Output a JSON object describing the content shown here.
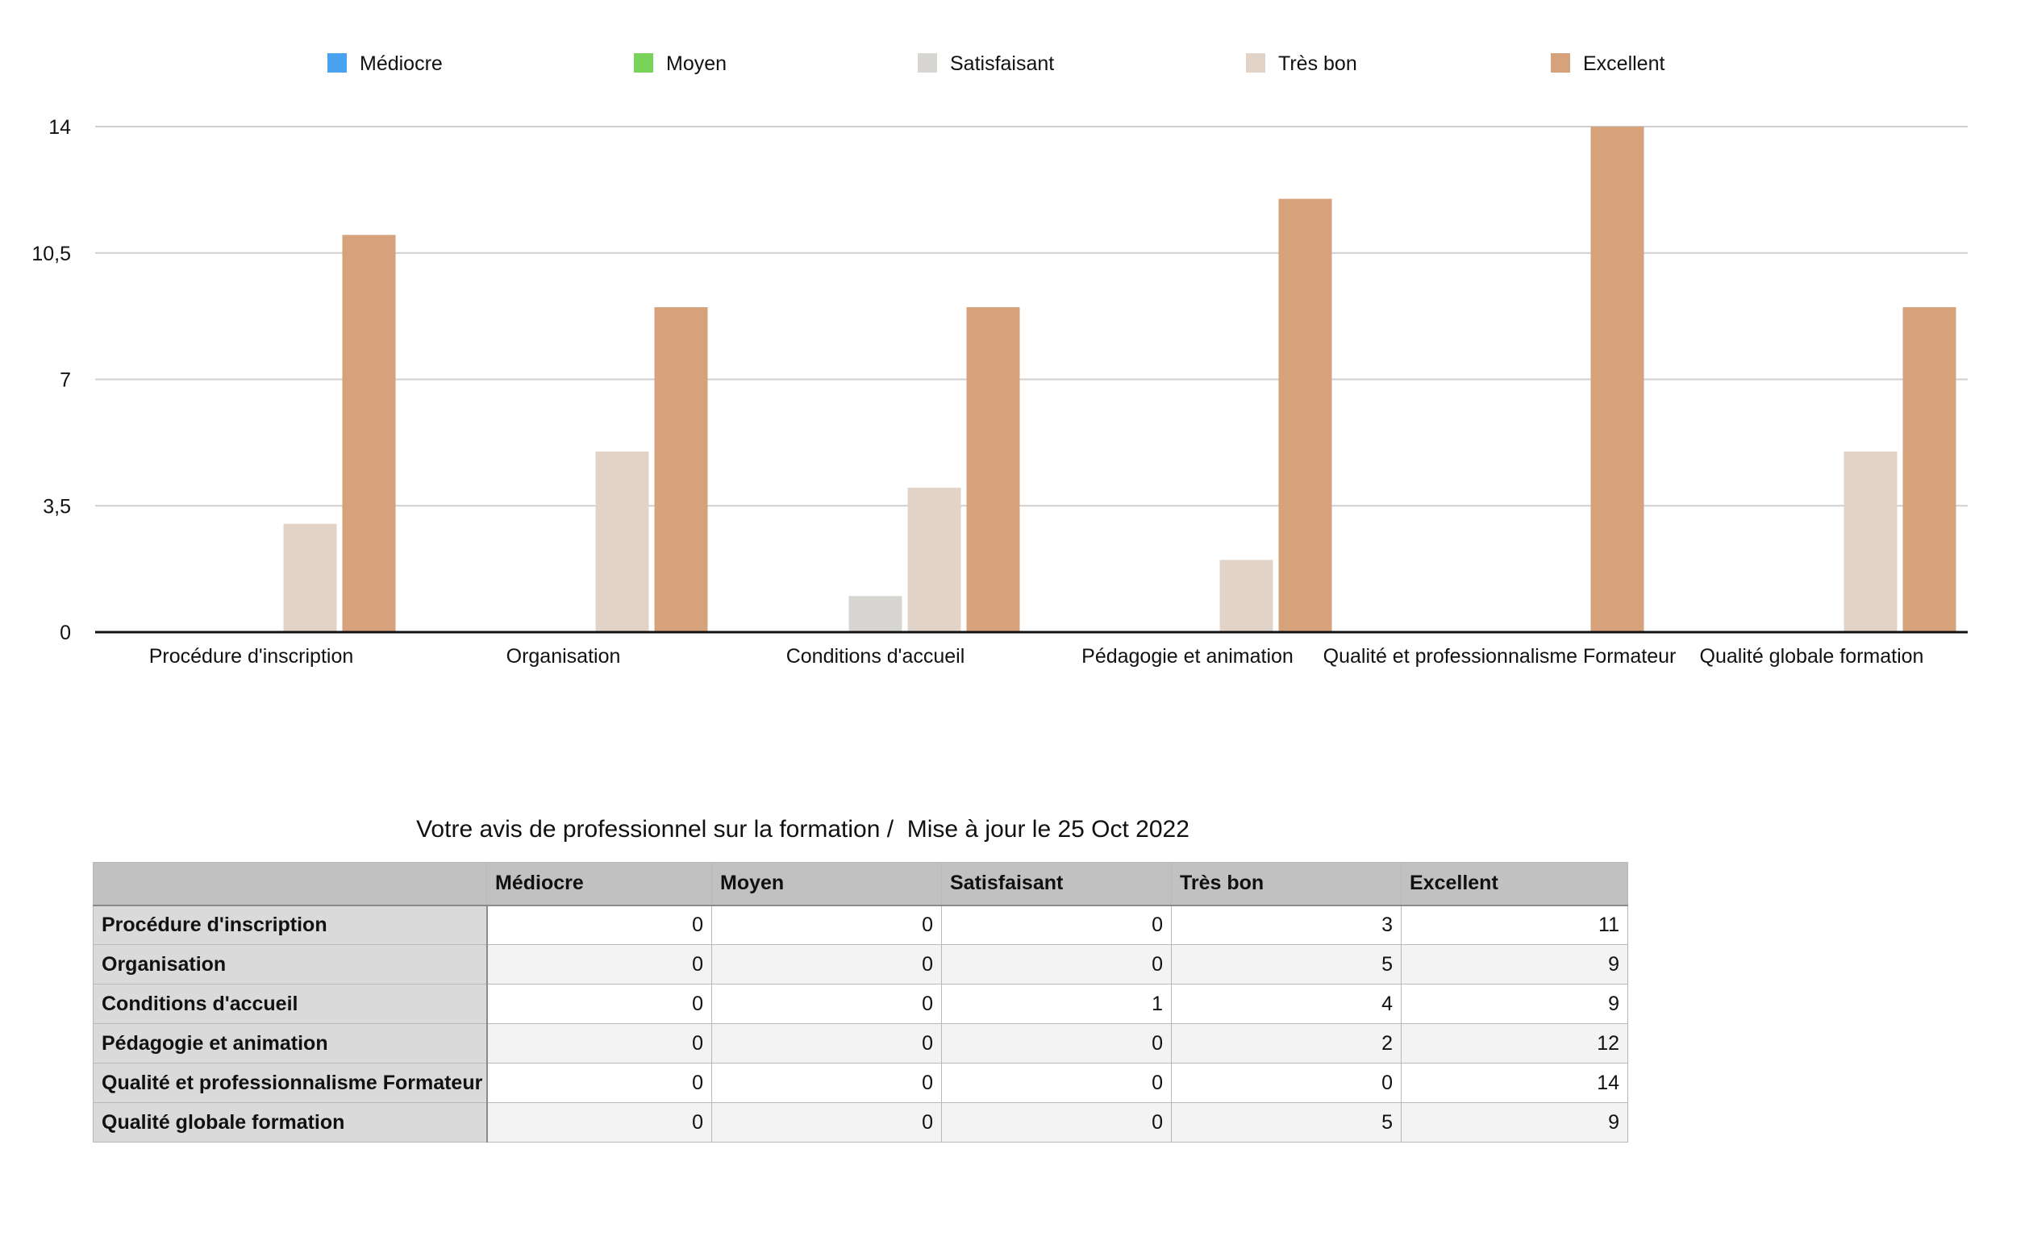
{
  "colors": {
    "series": [
      "#4aa3f0",
      "#7bd45a",
      "#d6d5d2",
      "#e2d3c8",
      "#d6a27c"
    ],
    "grid": "#cfcfcf",
    "axis": "#111111"
  },
  "chart_data": {
    "type": "bar",
    "categories": [
      "Procédure d'inscription",
      "Organisation",
      "Conditions d'accueil",
      "Pédagogie et animation",
      "Qualité et professionnalisme Formateur",
      "Qualité globale formation"
    ],
    "series": [
      {
        "name": "Médiocre",
        "values": [
          0,
          0,
          0,
          0,
          0,
          0
        ]
      },
      {
        "name": "Moyen",
        "values": [
          0,
          0,
          0,
          0,
          0,
          0
        ]
      },
      {
        "name": "Satisfaisant",
        "values": [
          0,
          0,
          1,
          0,
          0,
          0
        ]
      },
      {
        "name": "Très bon",
        "values": [
          3,
          5,
          4,
          2,
          0,
          5
        ]
      },
      {
        "name": "Excellent",
        "values": [
          11,
          9,
          9,
          12,
          14,
          9
        ]
      }
    ],
    "yticks": [
      "0",
      "3,5",
      "7",
      "10,5",
      "14"
    ],
    "ytick_values": [
      0,
      3.5,
      7,
      10.5,
      14
    ],
    "ylim": [
      0,
      14
    ],
    "grid": true,
    "legend": "top",
    "title": "",
    "xlabel": "",
    "ylabel": ""
  },
  "table": {
    "title": "Votre avis de professionnel sur la formation /  Mise à jour le 25 Oct 2022",
    "corner": "",
    "columns": [
      "Médiocre",
      "Moyen",
      "Satisfaisant",
      "Très bon",
      "Excellent"
    ],
    "rows": [
      {
        "label": "Procédure d'inscription",
        "cells": [
          "0",
          "0",
          "0",
          "3",
          "11"
        ]
      },
      {
        "label": "Organisation",
        "cells": [
          "0",
          "0",
          "0",
          "5",
          "9"
        ]
      },
      {
        "label": "Conditions d'accueil",
        "cells": [
          "0",
          "0",
          "1",
          "4",
          "9"
        ]
      },
      {
        "label": "Pédagogie et animation",
        "cells": [
          "0",
          "0",
          "0",
          "2",
          "12"
        ]
      },
      {
        "label": "Qualité et professionnalisme Formateur",
        "cells": [
          "0",
          "0",
          "0",
          "0",
          "14"
        ]
      },
      {
        "label": "Qualité globale formation",
        "cells": [
          "0",
          "0",
          "0",
          "5",
          "9"
        ]
      }
    ]
  }
}
